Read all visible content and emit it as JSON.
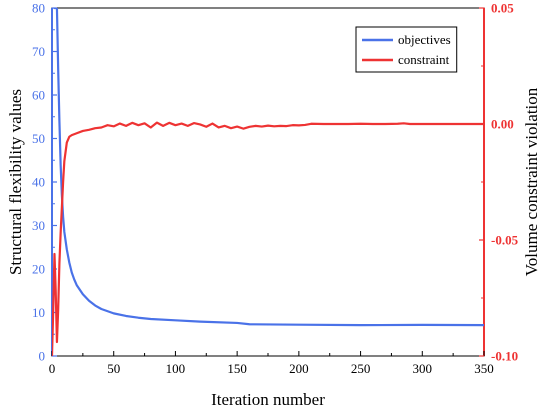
{
  "colors": {
    "left_axis": "#4a72e8",
    "right_axis": "#ee3333",
    "frame": "#000000",
    "background": "#ffffff"
  },
  "chart_data": {
    "type": "line",
    "title": "",
    "xlabel": "Iteration number",
    "ylabel_left": "Structural flexibility values",
    "ylabel_right": "Volume constraint violation",
    "xlim": [
      0,
      350
    ],
    "ylim_left": [
      0,
      80
    ],
    "ylim_right": [
      -0.1,
      0.05
    ],
    "x_ticks": [
      "0",
      "50",
      "100",
      "150",
      "200",
      "250",
      "300",
      "350"
    ],
    "y_left_ticks": [
      "0",
      "10",
      "20",
      "30",
      "40",
      "50",
      "60",
      "70",
      "80"
    ],
    "y_right_ticks": [
      "-0.10",
      "-0.05",
      "0.00",
      "0.05"
    ],
    "grid": false,
    "legend_position": "top-right",
    "legend": [
      "objectives",
      "constraint"
    ],
    "series": [
      {
        "name": "objectives",
        "axis": "left",
        "color": "#4a72e8",
        "points": [
          [
            2,
            80
          ],
          [
            3,
            80
          ],
          [
            4,
            80
          ],
          [
            5,
            66
          ],
          [
            6,
            54
          ],
          [
            7,
            44
          ],
          [
            8,
            37
          ],
          [
            9,
            32
          ],
          [
            10,
            28.5
          ],
          [
            12,
            24.5
          ],
          [
            14,
            21.5
          ],
          [
            16,
            19.2
          ],
          [
            18,
            17.6
          ],
          [
            20,
            16.3
          ],
          [
            25,
            14.2
          ],
          [
            30,
            12.7
          ],
          [
            35,
            11.6
          ],
          [
            40,
            10.8
          ],
          [
            50,
            9.8
          ],
          [
            60,
            9.2
          ],
          [
            70,
            8.8
          ],
          [
            80,
            8.5
          ],
          [
            100,
            8.2
          ],
          [
            120,
            7.9
          ],
          [
            150,
            7.6
          ],
          [
            160,
            7.3
          ],
          [
            200,
            7.2
          ],
          [
            250,
            7.1
          ],
          [
            300,
            7.15
          ],
          [
            350,
            7.1
          ]
        ]
      },
      {
        "name": "constraint",
        "axis": "right",
        "color": "#ee3333",
        "points": [
          [
            0,
            -0.1
          ],
          [
            1,
            -0.08
          ],
          [
            2,
            -0.056
          ],
          [
            3,
            -0.072
          ],
          [
            4,
            -0.094
          ],
          [
            5,
            -0.08
          ],
          [
            6,
            -0.06
          ],
          [
            7,
            -0.047
          ],
          [
            8,
            -0.036
          ],
          [
            9,
            -0.025
          ],
          [
            10,
            -0.016
          ],
          [
            12,
            -0.008
          ],
          [
            14,
            -0.0055
          ],
          [
            16,
            -0.0048
          ],
          [
            20,
            -0.004
          ],
          [
            25,
            -0.003
          ],
          [
            30,
            -0.0025
          ],
          [
            35,
            -0.0018
          ],
          [
            40,
            -0.0015
          ],
          [
            45,
            -0.0005
          ],
          [
            50,
            -0.001
          ],
          [
            55,
            0.0002
          ],
          [
            60,
            -0.0008
          ],
          [
            65,
            0.0005
          ],
          [
            70,
            -0.0005
          ],
          [
            75,
            0.0003
          ],
          [
            80,
            -0.0015
          ],
          [
            85,
            0.0006
          ],
          [
            90,
            -0.0008
          ],
          [
            95,
            0.0005
          ],
          [
            100,
            -0.0005
          ],
          [
            105,
            0.0002
          ],
          [
            110,
            -0.0008
          ],
          [
            115,
            0.0004
          ],
          [
            120,
            -0.0002
          ],
          [
            125,
            -0.0012
          ],
          [
            130,
            0.0002
          ],
          [
            135,
            -0.0015
          ],
          [
            140,
            -0.0008
          ],
          [
            145,
            -0.0018
          ],
          [
            150,
            -0.0011
          ],
          [
            155,
            -0.002
          ],
          [
            160,
            -0.0012
          ],
          [
            165,
            -0.0008
          ],
          [
            170,
            -0.0011
          ],
          [
            175,
            -0.0007
          ],
          [
            180,
            -0.001
          ],
          [
            185,
            -0.0008
          ],
          [
            190,
            -0.0009
          ],
          [
            195,
            -0.0005
          ],
          [
            200,
            -0.0006
          ],
          [
            205,
            -0.0004
          ],
          [
            210,
            0.0001
          ],
          [
            220,
            0
          ],
          [
            230,
            0
          ],
          [
            240,
            0
          ],
          [
            250,
            0.0001
          ],
          [
            260,
            0
          ],
          [
            270,
            0
          ],
          [
            280,
            0.0001
          ],
          [
            285,
            0.0003
          ],
          [
            290,
            0
          ],
          [
            300,
            0
          ],
          [
            320,
            0
          ],
          [
            340,
            0
          ],
          [
            350,
            0
          ]
        ]
      }
    ]
  }
}
